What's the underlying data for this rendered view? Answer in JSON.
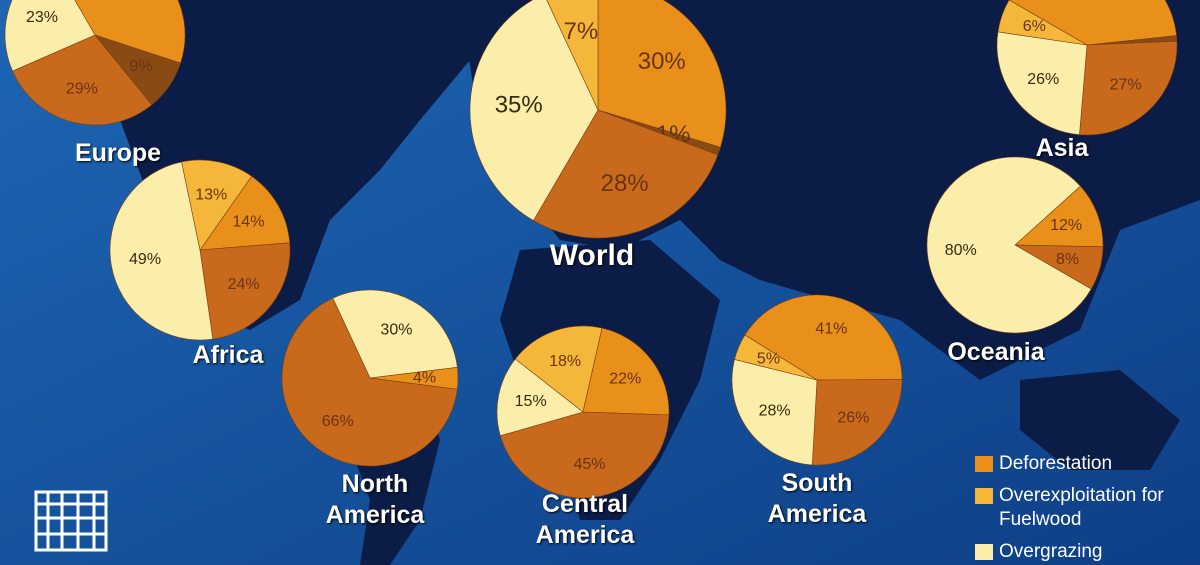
{
  "chart_data": [
    {
      "type": "pie",
      "title": "Europe",
      "values": [
        38,
        null,
        23,
        29,
        9
      ],
      "value_labels": [
        null,
        null,
        "23%",
        "29%",
        "9%"
      ],
      "colors": [
        "#e8901a",
        "#f4b73a",
        "#fbeeaa",
        "#c8691c",
        "#8a4a14"
      ]
    },
    {
      "type": "pie",
      "title": "World",
      "values": [
        30,
        7,
        35,
        28,
        1
      ],
      "value_labels": [
        "30%",
        "7%",
        "35%",
        "28%",
        "1%"
      ],
      "colors": [
        "#e8901a",
        "#f4b73a",
        "#fbeeaa",
        "#c8691c",
        "#8a4a14"
      ]
    },
    {
      "type": "pie",
      "title": "Asia",
      "values": [
        40,
        6,
        26,
        27,
        1
      ],
      "value_labels": [
        null,
        "6%",
        "26%",
        "27%",
        null
      ],
      "colors": [
        "#e8901a",
        "#f4b73a",
        "#fbeeaa",
        "#c8691c",
        "#8a4a14"
      ]
    },
    {
      "type": "pie",
      "title": "Africa",
      "values": [
        14,
        13,
        49,
        24,
        null
      ],
      "value_labels": [
        "14%",
        "13%",
        "49%",
        "24%",
        null
      ],
      "colors": [
        "#e8901a",
        "#f4b73a",
        "#fbeeaa",
        "#c8691c",
        "#8a4a14"
      ]
    },
    {
      "type": "pie",
      "title": "Oceania",
      "values": [
        12,
        null,
        80,
        8,
        null
      ],
      "value_labels": [
        "12%",
        null,
        "80%",
        "8%",
        null
      ],
      "colors": [
        "#e8901a",
        "#f4b73a",
        "#fbeeaa",
        "#c8691c",
        "#8a4a14"
      ]
    },
    {
      "type": "pie",
      "title": "North America",
      "values": [
        4,
        null,
        30,
        66,
        null
      ],
      "value_labels": [
        "4%",
        null,
        "30%",
        "66%",
        null
      ],
      "colors": [
        "#e8901a",
        "#f4b73a",
        "#fbeeaa",
        "#c8691c",
        "#8a4a14"
      ]
    },
    {
      "type": "pie",
      "title": "Central America",
      "values": [
        22,
        18,
        15,
        45,
        null
      ],
      "value_labels": [
        "22%",
        "18%",
        "15%",
        "45%",
        null
      ],
      "colors": [
        "#e8901a",
        "#f4b73a",
        "#fbeeaa",
        "#c8691c",
        "#8a4a14"
      ]
    },
    {
      "type": "pie",
      "title": "South America",
      "values": [
        41,
        5,
        28,
        26,
        null
      ],
      "value_labels": [
        "41%",
        "5%",
        "28%",
        "26%",
        null
      ],
      "colors": [
        "#e8901a",
        "#f4b73a",
        "#fbeeaa",
        "#c8691c",
        "#8a4a14"
      ]
    }
  ],
  "legend": {
    "entries": [
      {
        "label": "Deforestation",
        "color": "#e8901a"
      },
      {
        "label": "Overexploitation for Fuelwood",
        "color": "#f4b73a"
      },
      {
        "label": "Overgrazing",
        "color": "#fbeeaa"
      }
    ]
  }
}
